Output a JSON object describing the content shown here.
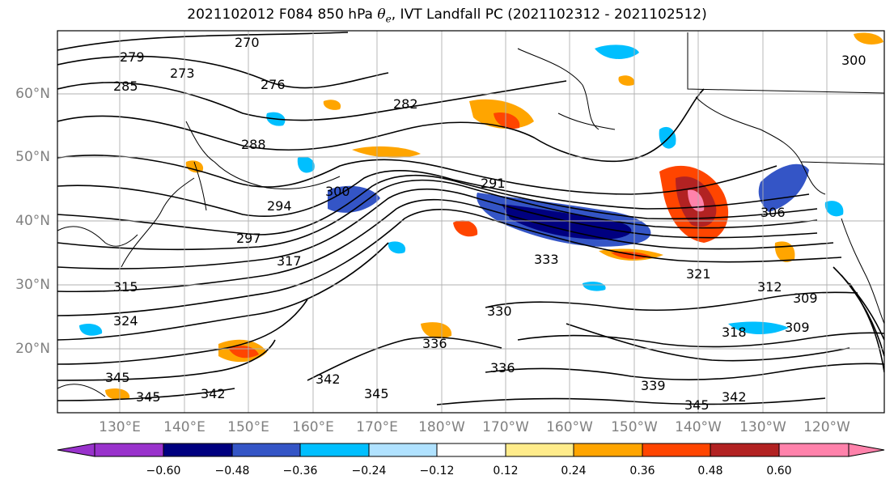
{
  "title": {
    "prefix": "2021102012 F084 850 hPa ",
    "symbol": "θ",
    "subscript": "e",
    "suffix": ", IVT Landfall PC (2021102312 - 2021102512)"
  },
  "lat_labels": [
    "60°N",
    "50°N",
    "40°N",
    "30°N",
    "20°N"
  ],
  "lon_labels": [
    "130°E",
    "140°E",
    "150°E",
    "160°E",
    "170°E",
    "180°W",
    "170°W",
    "160°W",
    "150°W",
    "140°W",
    "130°W",
    "120°W"
  ],
  "contour_labels": [
    "270",
    "279",
    "273",
    "285",
    "276",
    "282",
    "288",
    "291",
    "294",
    "297",
    "300",
    "306",
    "315",
    "317",
    "324",
    "321",
    "312",
    "309",
    "318",
    "330",
    "336",
    "342",
    "345",
    "339",
    "333",
    "300"
  ],
  "colorbar": {
    "ticks": [
      "−0.60",
      "−0.48",
      "−0.36",
      "−0.24",
      "−0.12",
      "0.12",
      "0.24",
      "0.36",
      "0.48",
      "0.60"
    ],
    "colors": [
      "#9932cc",
      "#000080",
      "#3455c6",
      "#00bfff",
      "#b0e2ff",
      "#ffffff",
      "#ffec8b",
      "#ffa500",
      "#ff4500",
      "#b22222",
      "#ff82ab"
    ]
  }
}
